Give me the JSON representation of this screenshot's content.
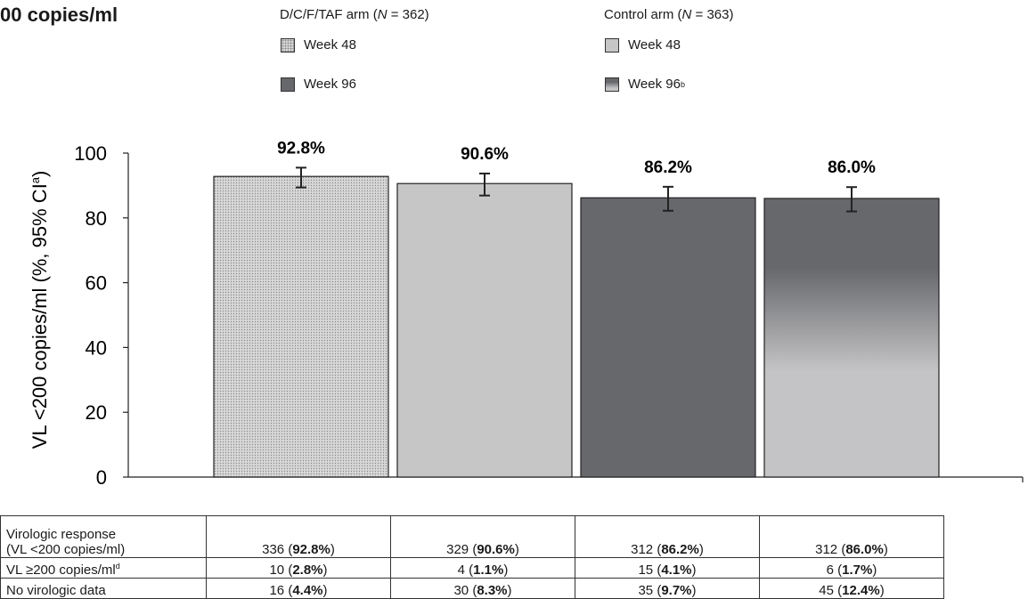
{
  "heading": "00 copies/ml",
  "legend": {
    "groups": [
      {
        "title_prefix": "D/C/F/TAF arm (",
        "title_n": "N",
        "title_suffix": " = 362)",
        "items": [
          {
            "label": "Week 48",
            "sup": ""
          },
          {
            "label": "Week 96",
            "sup": ""
          }
        ]
      },
      {
        "title_prefix": "Control arm (",
        "title_n": "N",
        "title_suffix": " = 363)",
        "items": [
          {
            "label": "Week 48",
            "sup": ""
          },
          {
            "label": "Week 96",
            "sup": "b"
          }
        ]
      }
    ]
  },
  "chart_data": {
    "type": "bar",
    "ylabel": "VL <200 copies/ml (%, 95% CI",
    "ylabel_sup": "a",
    "ylabel_suffix": ")",
    "ylim": [
      0,
      100
    ],
    "yticks": [
      0,
      20,
      40,
      60,
      80,
      100
    ],
    "grid": false,
    "bars": [
      {
        "group": "D/C/F/TAF arm",
        "week": "Week 48",
        "value": 92.8,
        "label": "92.8%",
        "ci": [
          89.4,
          95.5
        ],
        "fill": "dotted"
      },
      {
        "group": "Control arm",
        "week": "Week 48",
        "value": 90.6,
        "label": "90.6%",
        "ci": [
          86.9,
          93.7
        ],
        "fill": "#c6c6c6"
      },
      {
        "group": "D/C/F/TAF arm",
        "week": "Week 96",
        "value": 86.2,
        "label": "86.2%",
        "ci": [
          82.2,
          89.6
        ],
        "fill": "#67686c"
      },
      {
        "group": "Control arm",
        "week": "Week 96",
        "value": 86.0,
        "label": "86.0%",
        "ci": [
          82.0,
          89.5
        ],
        "fill": "gradient"
      }
    ]
  },
  "table": {
    "rows": [
      {
        "label_line1": "Virologic response",
        "label_line2": "(VL <200 copies/ml)",
        "label_sup": "",
        "cells": [
          {
            "n": "336 (",
            "pct": "92.8%",
            "end": ")"
          },
          {
            "n": "329 (",
            "pct": "90.6%",
            "end": ")"
          },
          {
            "n": "312 (",
            "pct": "86.2%",
            "end": ")"
          },
          {
            "n": "312 (",
            "pct": "86.0%",
            "end": ")"
          }
        ]
      },
      {
        "label_line1": "VL ≥200 copies/ml",
        "label_line2": "",
        "label_sup": "d",
        "cells": [
          {
            "n": "10 (",
            "pct": "2.8%",
            "end": ")"
          },
          {
            "n": "4 (",
            "pct": "1.1%",
            "end": ")"
          },
          {
            "n": "15 (",
            "pct": "4.1%",
            "end": ")"
          },
          {
            "n": "6 (",
            "pct": "1.7%",
            "end": ")"
          }
        ]
      },
      {
        "label_line1": "No virologic data",
        "label_line2": "",
        "label_sup": "",
        "cells": [
          {
            "n": "16 (",
            "pct": "4.4%",
            "end": ")"
          },
          {
            "n": "30 (",
            "pct": "8.3%",
            "end": ")"
          },
          {
            "n": "35 (",
            "pct": "9.7%",
            "end": ")"
          },
          {
            "n": "45 (",
            "pct": "12.4%",
            "end": ")"
          }
        ]
      }
    ]
  }
}
